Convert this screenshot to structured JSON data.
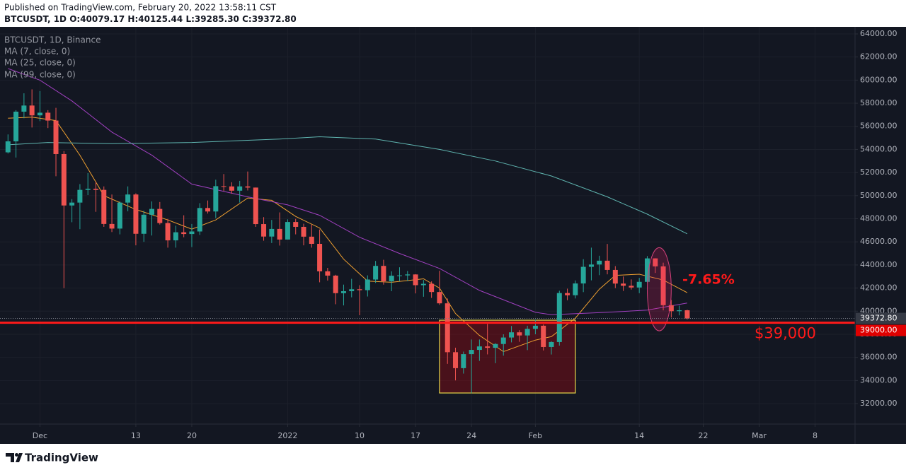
{
  "chart_data": {
    "type": "candlestick",
    "published": "Published on TradingView.com, February 20, 2022 13:58:11 CST",
    "header_symbol": "BTCUSDT, 1D",
    "header_ohlc": [
      "O:40079.17",
      "H:40125.44",
      "L:39285.30",
      "C:39372.80"
    ],
    "symbol": "BTCUSDT, 1D, Binance",
    "brand": "TradingView",
    "up_color": "#26a69a",
    "down_color": "#ef5350",
    "grid": true,
    "x": [
      "2021-11-27",
      "2021-11-28",
      "2021-11-29",
      "2021-11-30",
      "2021-12-01",
      "2021-12-02",
      "2021-12-03",
      "2021-12-04",
      "2021-12-05",
      "2021-12-06",
      "2021-12-07",
      "2021-12-08",
      "2021-12-09",
      "2021-12-10",
      "2021-12-11",
      "2021-12-12",
      "2021-12-13",
      "2021-12-14",
      "2021-12-15",
      "2021-12-16",
      "2021-12-17",
      "2021-12-18",
      "2021-12-19",
      "2021-12-20",
      "2021-12-21",
      "2021-12-22",
      "2021-12-23",
      "2021-12-24",
      "2021-12-25",
      "2021-12-26",
      "2021-12-27",
      "2021-12-28",
      "2021-12-29",
      "2021-12-30",
      "2021-12-31",
      "2022-01-01",
      "2022-01-02",
      "2022-01-03",
      "2022-01-04",
      "2022-01-05",
      "2022-01-06",
      "2022-01-07",
      "2022-01-08",
      "2022-01-09",
      "2022-01-10",
      "2022-01-11",
      "2022-01-12",
      "2022-01-13",
      "2022-01-14",
      "2022-01-15",
      "2022-01-16",
      "2022-01-17",
      "2022-01-18",
      "2022-01-19",
      "2022-01-20",
      "2022-01-21",
      "2022-01-22",
      "2022-01-23",
      "2022-01-24",
      "2022-01-25",
      "2022-01-26",
      "2022-01-27",
      "2022-01-28",
      "2022-01-29",
      "2022-01-30",
      "2022-01-31",
      "2022-02-01",
      "2022-02-02",
      "2022-02-03",
      "2022-02-04",
      "2022-02-05",
      "2022-02-06",
      "2022-02-07",
      "2022-02-08",
      "2022-02-09",
      "2022-02-10",
      "2022-02-11",
      "2022-02-12",
      "2022-02-13",
      "2022-02-14",
      "2022-02-15",
      "2022-02-16",
      "2022-02-17",
      "2022-02-18",
      "2022-02-19",
      "2022-02-20"
    ],
    "open": [
      53750,
      54700,
      57270,
      57800,
      56950,
      57180,
      56500,
      53600,
      49150,
      49400,
      50500,
      50600,
      50500,
      47550,
      47150,
      49400,
      50100,
      46700,
      48350,
      48850,
      47630,
      46130,
      46830,
      46680,
      46900,
      48930,
      48630,
      50820,
      50800,
      50430,
      50800,
      50700,
      47540,
      46460,
      47120,
      46200,
      47720,
      47300,
      46450,
      45830,
      43450,
      43080,
      41560,
      41730,
      41900,
      41820,
      42740,
      43920,
      42590,
      43070,
      43100,
      43180,
      42250,
      42370,
      41660,
      40680,
      36450,
      35070,
      36280,
      36650,
      36950,
      36830,
      37160,
      37720,
      38170,
      37900,
      38470,
      38740,
      36900,
      37330,
      41570,
      41380,
      42400,
      43840,
      44040,
      44370,
      43570,
      42390,
      42200,
      42050,
      42540,
      44570,
      43880,
      40520,
      40000,
      40079.17
    ],
    "high": [
      55300,
      57400,
      58860,
      59200,
      59050,
      57400,
      57600,
      53860,
      49700,
      51000,
      51950,
      51200,
      50800,
      50100,
      49500,
      50800,
      50200,
      48700,
      49500,
      49450,
      47990,
      47400,
      48300,
      47550,
      49350,
      49580,
      51380,
      51870,
      51160,
      51280,
      52090,
      50700,
      48140,
      47900,
      48550,
      47950,
      47990,
      47570,
      47500,
      47070,
      43750,
      43150,
      42300,
      42800,
      42250,
      43100,
      44350,
      44450,
      43450,
      43800,
      43480,
      43200,
      42700,
      42580,
      43500,
      41100,
      36840,
      36500,
      37550,
      37550,
      38900,
      37230,
      38000,
      38720,
      38360,
      38740,
      39270,
      38850,
      37400,
      41770,
      41950,
      42660,
      44500,
      45500,
      44800,
      45820,
      43900,
      43000,
      42750,
      42880,
      44770,
      44580,
      44200,
      40980,
      40480,
      40125.44
    ],
    "low": [
      53650,
      53300,
      56700,
      55900,
      56450,
      55850,
      51680,
      42000,
      47700,
      47100,
      50050,
      48600,
      47300,
      46850,
      46650,
      48650,
      45700,
      46000,
      46550,
      47500,
      45500,
      45500,
      46400,
      45550,
      46600,
      48450,
      48050,
      50400,
      50170,
      49400,
      50450,
      47300,
      46100,
      45900,
      45680,
      46200,
      46650,
      45700,
      45500,
      42500,
      42650,
      40600,
      40500,
      41200,
      39650,
      41270,
      42450,
      42300,
      41730,
      42600,
      42600,
      41540,
      41250,
      41150,
      40550,
      35440,
      34010,
      34600,
      32900,
      35700,
      36260,
      35500,
      36150,
      37300,
      37350,
      36630,
      38000,
      36600,
      36250,
      37020,
      40950,
      41100,
      41650,
      42670,
      43120,
      43190,
      42000,
      41750,
      41870,
      41560,
      42430,
      43310,
      40070,
      39450,
      39640,
      39285.3
    ],
    "close": [
      54700,
      57270,
      57800,
      56950,
      57180,
      56500,
      53600,
      49150,
      49400,
      50500,
      50600,
      50500,
      47550,
      47150,
      49400,
      50100,
      46700,
      48350,
      48850,
      47630,
      46130,
      46830,
      46680,
      46900,
      48930,
      48630,
      50820,
      50800,
      50430,
      50800,
      50700,
      47540,
      46460,
      47120,
      46200,
      47720,
      47300,
      46450,
      45830,
      43450,
      43080,
      41560,
      41730,
      41900,
      41820,
      42740,
      43920,
      42590,
      43070,
      43100,
      43180,
      42250,
      42370,
      41660,
      40680,
      36450,
      35070,
      36280,
      36650,
      36950,
      36830,
      37160,
      37720,
      38170,
      37900,
      38470,
      38740,
      36900,
      37330,
      41570,
      41380,
      42400,
      43840,
      44040,
      44370,
      43570,
      42390,
      42200,
      42050,
      42540,
      44570,
      43880,
      40520,
      40000,
      40079.17,
      39372.8
    ],
    "moving_averages": [
      {
        "name": "MA (7, close, 0)",
        "color": "#f0a030",
        "x": [
          "2021-11-27",
          "2021-11-30",
          "2021-12-03",
          "2021-12-06",
          "2021-12-09",
          "2021-12-13",
          "2021-12-17",
          "2021-12-20",
          "2021-12-23",
          "2021-12-27",
          "2021-12-30",
          "2022-01-02",
          "2022-01-05",
          "2022-01-08",
          "2022-01-11",
          "2022-01-14",
          "2022-01-18",
          "2022-01-20",
          "2022-01-22",
          "2022-01-25",
          "2022-01-28",
          "2022-02-01",
          "2022-02-03",
          "2022-02-06",
          "2022-02-09",
          "2022-02-11",
          "2022-02-14",
          "2022-02-17",
          "2022-02-20"
        ],
        "values": [
          56700,
          56800,
          56500,
          53500,
          50000,
          48800,
          47900,
          47100,
          47900,
          49800,
          49600,
          48200,
          47200,
          44500,
          42600,
          42500,
          42800,
          42000,
          39800,
          37900,
          36500,
          37500,
          37800,
          39400,
          41900,
          43100,
          43200,
          42700,
          41600
        ]
      },
      {
        "name": "MA (25, close, 0)",
        "color": "#a040c0",
        "x": [
          "2021-11-27",
          "2021-12-01",
          "2021-12-05",
          "2021-12-10",
          "2021-12-15",
          "2021-12-20",
          "2021-12-27",
          "2022-01-01",
          "2022-01-05",
          "2022-01-10",
          "2022-01-15",
          "2022-01-20",
          "2022-01-25",
          "2022-02-01",
          "2022-02-03",
          "2022-02-10",
          "2022-02-15",
          "2022-02-20"
        ],
        "values": [
          61000,
          60000,
          58200,
          55500,
          53500,
          51000,
          49900,
          49200,
          48300,
          46400,
          45000,
          43700,
          41800,
          39900,
          39700,
          39900,
          40100,
          40700
        ]
      },
      {
        "name": "MA (99, close, 0)",
        "color": "#5fb5b0",
        "x": [
          "2021-11-27",
          "2021-12-02",
          "2021-12-10",
          "2021-12-20",
          "2021-12-31",
          "2022-01-05",
          "2022-01-12",
          "2022-01-20",
          "2022-01-27",
          "2022-02-03",
          "2022-02-10",
          "2022-02-15",
          "2022-02-20"
        ],
        "values": [
          54400,
          54600,
          54500,
          54600,
          54900,
          55100,
          54900,
          54000,
          53000,
          51700,
          49900,
          48400,
          46700
        ]
      }
    ],
    "xlim": [
      "2021-11-26",
      "2022-03-13"
    ],
    "xticks": [
      {
        "value": "2021-12-01",
        "label": "Dec"
      },
      {
        "value": "2021-12-13",
        "label": "13"
      },
      {
        "value": "2021-12-20",
        "label": "20"
      },
      {
        "value": "2022-01-01",
        "label": "2022"
      },
      {
        "value": "2022-01-10",
        "label": "10"
      },
      {
        "value": "2022-01-17",
        "label": "17"
      },
      {
        "value": "2022-01-24",
        "label": "24"
      },
      {
        "value": "2022-02-01",
        "label": "Feb"
      },
      {
        "value": "2022-02-14",
        "label": "14"
      },
      {
        "value": "2022-02-22",
        "label": "22"
      },
      {
        "value": "2022-03-01",
        "label": "Mar"
      },
      {
        "value": "2022-03-08",
        "label": "8"
      }
    ],
    "ylim": [
      30230,
      64610
    ],
    "yticks": [
      {
        "value": 32000,
        "label": "32000.00"
      },
      {
        "value": 34000,
        "label": "34000.00"
      },
      {
        "value": 36000,
        "label": "36000.00"
      },
      {
        "value": 38000,
        "label": "38000.00"
      },
      {
        "value": 40000,
        "label": "40000.00"
      },
      {
        "value": 42000,
        "label": "42000.00"
      },
      {
        "value": 44000,
        "label": "44000.00"
      },
      {
        "value": 46000,
        "label": "46000.00"
      },
      {
        "value": 48000,
        "label": "48000.00"
      },
      {
        "value": 50000,
        "label": "50000.00"
      },
      {
        "value": 52000,
        "label": "52000.00"
      },
      {
        "value": 54000,
        "label": "54000.00"
      },
      {
        "value": 56000,
        "label": "56000.00"
      },
      {
        "value": 58000,
        "label": "58000.00"
      },
      {
        "value": 60000,
        "label": "60000.00"
      },
      {
        "value": 62000,
        "label": "62000.00"
      },
      {
        "value": 64000,
        "label": "64000.00"
      }
    ],
    "last_price": {
      "value": 39372.8,
      "label": "39372.80"
    },
    "support_line": {
      "value": 39000,
      "label": "$39,000",
      "axis_label": "39000.00",
      "color": "#ff1a1a"
    },
    "box": {
      "x": [
        "2022-01-20",
        "2022-02-06"
      ],
      "y": [
        32920,
        39220
      ]
    },
    "ellipse": {
      "x": [
        "2022-02-15",
        "2022-02-18"
      ],
      "y": [
        38300,
        45500
      ]
    },
    "change_label": "-7.65%"
  }
}
